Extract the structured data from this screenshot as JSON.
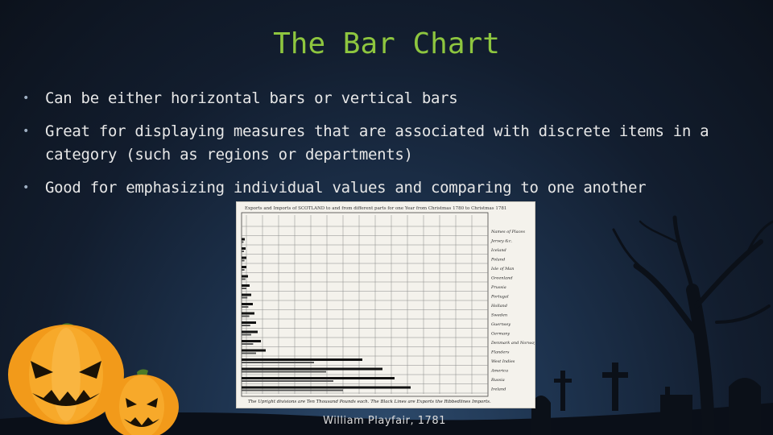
{
  "slide": {
    "title": "The Bar Chart",
    "bullets": [
      "Can be either horizontal bars or vertical bars",
      "Great for displaying measures that are associated with discrete items in a category (such as regions or departments)",
      "Good for emphasizing individual values and comparing to one another"
    ],
    "caption": "William Playfair, 1781"
  },
  "colors": {
    "title": "#8ec63f",
    "text": "#e7e7e7",
    "background": "#1a2a40",
    "pumpkin": "#f29a1a"
  },
  "figure": {
    "description_icon": "playfair-bar-chart-image",
    "header_text": "Exports and Imports of SCOTLAND to and from different parts for one Year from Christmas 1780 to Christmas 1781",
    "footer_text": "The Upright divisions are Ten Thousand Pounds each. The Black Lines are Exports the Ribbedlines Imports.",
    "countries": [
      "Names of Places",
      "Jersey &c.",
      "Iceland",
      "Poland",
      "Isle of Man",
      "Greenland",
      "Prussia",
      "Portugal",
      "Holland",
      "Sweden",
      "Guernsey",
      "Germany",
      "Denmark and Norway",
      "Flanders",
      "West Indies",
      "America",
      "Russia",
      "Ireland"
    ]
  }
}
